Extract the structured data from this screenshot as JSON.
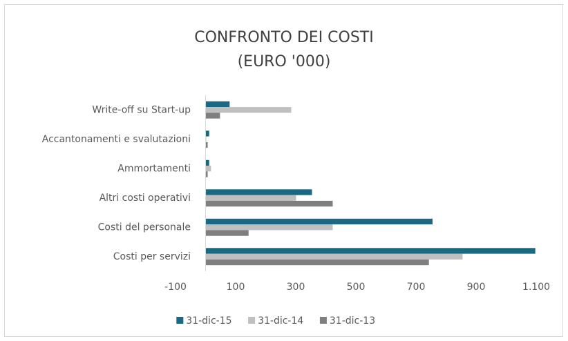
{
  "chart_data": {
    "type": "hbar",
    "title": "CONFRONTO DEI COSTI",
    "subtitle": "(EURO '000)",
    "categories": [
      "Write-off su Start-up",
      "Accantonamenti e svalutazioni",
      "Ammortamenti",
      "Altri costi operativi",
      "Costi del personale",
      "Costi per servizi"
    ],
    "series": [
      {
        "name": "31-dic-15",
        "color": "#1a6882",
        "values": [
          80,
          12,
          12,
          354,
          755,
          1097
        ]
      },
      {
        "name": "31-dic-14",
        "color": "#bfbfbf",
        "values": [
          285,
          2,
          18,
          301,
          423,
          855
        ]
      },
      {
        "name": "31-dic-13",
        "color": "#7f7f7f",
        "values": [
          48,
          7,
          7,
          423,
          143,
          743
        ]
      }
    ],
    "xlim": [
      -100,
      1100
    ],
    "xticks": [
      -100,
      100,
      300,
      500,
      700,
      900,
      {
        "value": 1100,
        "label": "1.100"
      }
    ],
    "grid": false,
    "legend": "bottom"
  }
}
